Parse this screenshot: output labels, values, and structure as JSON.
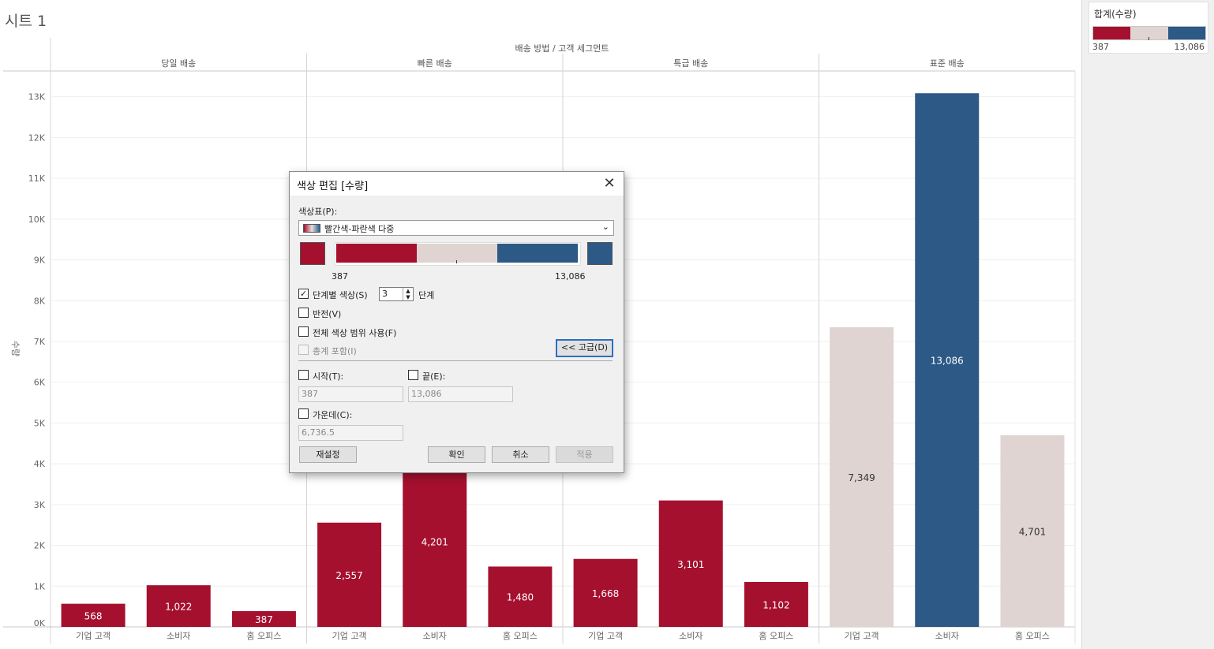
{
  "sheet_title": "시트 1",
  "chart_data": {
    "type": "bar",
    "column_header": "배송 방법 / 고객 세그먼트",
    "ylabel": "수량",
    "ylim": [
      0,
      13800
    ],
    "yticks": [
      "0K",
      "1K",
      "2K",
      "3K",
      "4K",
      "5K",
      "6K",
      "7K",
      "8K",
      "9K",
      "10K",
      "11K",
      "12K",
      "13K"
    ],
    "groups": [
      {
        "name": "당일 배송",
        "categories": [
          "기업 고객",
          "소비자",
          "홈 오피스"
        ],
        "values": [
          568,
          1022,
          387
        ],
        "labels": [
          "568",
          "1,022",
          "387"
        ]
      },
      {
        "name": "빠른 배송",
        "categories": [
          "기업 고객",
          "소비자",
          "홈 오피스"
        ],
        "values": [
          2557,
          4201,
          1480
        ],
        "labels": [
          "2,557",
          "4,201",
          "1,480"
        ]
      },
      {
        "name": "특급 배송",
        "categories": [
          "기업 고객",
          "소비자",
          "홈 오피스"
        ],
        "values": [
          1668,
          3101,
          1102
        ],
        "labels": [
          "1,668",
          "3,101",
          "1,102"
        ]
      },
      {
        "name": "표준 배송",
        "categories": [
          "기업 고객",
          "소비자",
          "홈 오피스"
        ],
        "values": [
          7349,
          13086,
          4701
        ],
        "labels": [
          "7,349",
          "13,086",
          "4,701"
        ]
      }
    ],
    "color_steps": [
      "#a5102f",
      "#e0d4d2",
      "#2c5985"
    ],
    "color_range": [
      387,
      13086
    ]
  },
  "legend": {
    "title": "합계(수량)",
    "min_label": "387",
    "max_label": "13,086"
  },
  "dialog": {
    "title": "색상 편집 [수량]",
    "close_glyph": "✕",
    "palette_label": "색상표(P):",
    "palette_value": "빨간색-파란색 다중",
    "palette_chevron": "⌄",
    "ramp_min": "387",
    "ramp_max": "13,086",
    "stepped_label": "단계별 색상(S)",
    "stepped_checked": "✓",
    "steps_value": "3",
    "steps_unit": "단계",
    "reversed_label": "반전(V)",
    "full_range_label": "전체 색상 범위 사용(F)",
    "include_totals_label": "총계 포함(I)",
    "advanced_button": "<< 고급(D)",
    "start_label": "시작(T):",
    "start_value": "387",
    "end_label": "끝(E):",
    "end_value": "13,086",
    "center_label": "가운데(C):",
    "center_value": "6,736.5",
    "reset_button": "재설정",
    "ok_button": "확인",
    "cancel_button": "취소",
    "apply_button": "적용",
    "colors": {
      "start": "#a5102f",
      "end": "#2c5985"
    }
  }
}
